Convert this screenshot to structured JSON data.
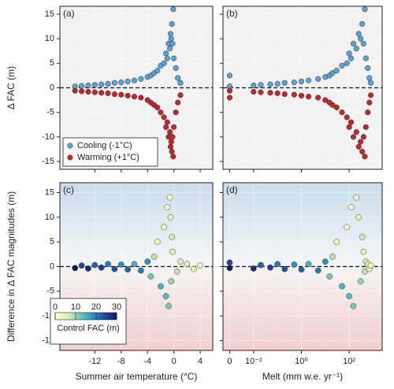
{
  "chart_data": [
    {
      "type": "scatter",
      "label": "(a)",
      "ylabel": "Δ FAC (m)",
      "x": [
        -15,
        -14,
        -13,
        -12,
        -11,
        -10,
        -9,
        -8,
        -7,
        -6,
        -5,
        -4,
        -3.5,
        -3,
        -2.5,
        -2,
        -1.5,
        -1.2,
        -1,
        -0.8,
        -0.6,
        -0.5,
        -0.4,
        -0.3,
        -0.2,
        -0.1,
        0,
        0.3,
        0.6,
        1
      ],
      "series": [
        {
          "name": "Cooling (-1°C)",
          "color": "#5ba3d6",
          "values": [
            0.3,
            0.4,
            0.5,
            0.6,
            0.7,
            0.8,
            1,
            1.1,
            1.3,
            1.5,
            1.8,
            2.2,
            2.5,
            3,
            3.5,
            4.5,
            5,
            7,
            6,
            9,
            8,
            11,
            10,
            13,
            9,
            16,
            6,
            4,
            2,
            1
          ]
        },
        {
          "name": "Warming (+1°C)",
          "color": "#c0282e",
          "values": [
            -0.6,
            -0.7,
            -0.8,
            -0.9,
            -1,
            -1.1,
            -1.3,
            -1.4,
            -1.6,
            -1.8,
            -2,
            -2.5,
            -3,
            -3.5,
            -4,
            -5,
            -6,
            -8,
            -7,
            -10,
            -9,
            -12,
            -11,
            -13,
            -10,
            -14,
            -8,
            -5,
            -3,
            -1.5
          ]
        }
      ],
      "xlim": [
        -17.3,
        5.9
      ],
      "xticks": [
        -12,
        -8,
        -4,
        0,
        4
      ],
      "show_xticklabels": false,
      "ylim": [
        -16.6,
        16.6
      ],
      "yticks": [
        -15,
        -10,
        -5,
        0,
        5,
        10,
        15
      ],
      "show_yticklabels": true,
      "grid": true,
      "hline": 0,
      "legend": "lower left"
    },
    {
      "type": "scatter",
      "label": "(b)",
      "x": [
        0,
        0,
        0.01,
        0.02,
        0.05,
        0.1,
        0.2,
        0.5,
        1,
        2,
        5,
        10,
        15,
        20,
        30,
        50,
        80,
        100,
        120,
        150,
        200,
        250,
        300,
        350,
        400,
        450,
        500,
        600,
        700,
        800
      ],
      "series": [
        {
          "name": "Cooling (-1°C)",
          "color": "#5ba3d6",
          "values": [
            0.3,
            2.5,
            0.5,
            0.6,
            0.7,
            0.8,
            1,
            1.1,
            1.3,
            1.5,
            1.8,
            2.2,
            2.5,
            3,
            3.5,
            4.5,
            5,
            7,
            6,
            9,
            8,
            11,
            10,
            13,
            9,
            16,
            6,
            4,
            2,
            1
          ]
        },
        {
          "name": "Warming (+1°C)",
          "color": "#c0282e",
          "values": [
            -0.6,
            -2,
            -0.8,
            -0.9,
            -1,
            -1.1,
            -1.3,
            -1.4,
            -1.6,
            -1.8,
            -2,
            -2.5,
            -3,
            -3.5,
            -4,
            -5,
            -6,
            -8,
            -7,
            -10,
            -9,
            -12,
            -11,
            -13,
            -10,
            -14,
            -8,
            -5,
            -3,
            -1.5
          ]
        }
      ],
      "xscale": "symlog",
      "linthresh": 0.01,
      "xlim": [
        -0.0028,
        2400
      ],
      "xticks": [
        0,
        0.01,
        1,
        100
      ],
      "show_xticklabels": false,
      "ylim": [
        -16.6,
        16.6
      ],
      "yticks": [
        -15,
        -10,
        -5,
        0,
        5,
        10,
        15
      ],
      "show_yticklabels": false,
      "grid": true,
      "hline": 0
    },
    {
      "type": "colorscatter",
      "label": "(c)",
      "ylabel": "Difference in Δ FAC magnitudes (m)",
      "xlabel": "Summer air temperature (°C)",
      "x": [
        -15,
        -14,
        -13,
        -12,
        -11,
        -10,
        -9,
        -8,
        -7,
        -6,
        -5,
        -4,
        -3.5,
        -3,
        -2.5,
        -2,
        -1.5,
        -1.2,
        -1,
        -0.8,
        -0.6,
        -0.5,
        -0.4,
        -0.3,
        -0.2,
        0.5,
        1,
        2,
        3,
        4
      ],
      "values": [
        -0.3,
        0.2,
        -0.4,
        0.3,
        -0.2,
        0.5,
        -0.5,
        0.4,
        -0.6,
        0.5,
        -0.8,
        1,
        -2,
        2,
        5,
        -4,
        8,
        -6,
        12,
        -8,
        14,
        10,
        -3,
        6,
        3,
        -1,
        1,
        0.5,
        -0.5,
        0.2
      ],
      "color_values": [
        30,
        25,
        28,
        22,
        26,
        20,
        24,
        18,
        22,
        15,
        20,
        18,
        12,
        8,
        3,
        15,
        2,
        14,
        1,
        12,
        2,
        4,
        10,
        6,
        5,
        8,
        6,
        5,
        4,
        3
      ],
      "colormap": [
        "#ffffd9",
        "#edf8b1",
        "#c7e9b4",
        "#7fcdbb",
        "#41b6c4",
        "#1d91c0",
        "#225ea8",
        "#253494",
        "#081d58"
      ],
      "clim": [
        0,
        30
      ],
      "cticks": [
        0,
        10,
        20,
        30
      ],
      "colorbar_label": "Control FAC (m)",
      "xlim": [
        -17.3,
        5.9
      ],
      "xticks": [
        -12,
        -8,
        -4,
        0,
        4
      ],
      "show_xticklabels": true,
      "ylim": [
        -17,
        17
      ],
      "yticks": [
        -15,
        -10,
        -5,
        0,
        5,
        10,
        15
      ],
      "show_yticklabels": true,
      "grid": true,
      "hline": 0
    },
    {
      "type": "colorscatter",
      "label": "(d)",
      "xlabel": "Melt (mm w.e. yr⁻¹)",
      "x": [
        0,
        0,
        0.01,
        0.02,
        0.05,
        0.1,
        0.2,
        0.5,
        1,
        2,
        5,
        10,
        15,
        20,
        30,
        50,
        80,
        100,
        120,
        150,
        200,
        250,
        300,
        350,
        400,
        450,
        500,
        600,
        700,
        800
      ],
      "values": [
        -0.3,
        0.8,
        -0.4,
        0.3,
        -0.2,
        0.5,
        -0.5,
        0.4,
        -0.6,
        0.5,
        -0.8,
        1,
        -2,
        2,
        5,
        -4,
        8,
        -6,
        12,
        -8,
        14,
        10,
        -3,
        6,
        3,
        -1,
        1,
        0.5,
        -0.5,
        0.2
      ],
      "color_values": [
        30,
        25,
        28,
        22,
        26,
        20,
        24,
        18,
        22,
        15,
        20,
        18,
        12,
        8,
        3,
        15,
        2,
        14,
        1,
        12,
        2,
        4,
        10,
        6,
        5,
        8,
        6,
        5,
        4,
        3
      ],
      "colormap": [
        "#ffffd9",
        "#edf8b1",
        "#c7e9b4",
        "#7fcdbb",
        "#41b6c4",
        "#1d91c0",
        "#225ea8",
        "#253494",
        "#081d58"
      ],
      "clim": [
        0,
        30
      ],
      "xscale": "symlog",
      "linthresh": 0.01,
      "xlim": [
        -0.0028,
        2400
      ],
      "xticks": [
        0,
        {
          "value": 0.01,
          "label": "10⁻²"
        },
        {
          "value": 1,
          "label": "10⁰"
        },
        {
          "value": 100,
          "label": "10²"
        }
      ],
      "show_xticklabels": true,
      "ylim": [
        -17,
        17
      ],
      "yticks": [
        -15,
        -10,
        -5,
        0,
        5,
        10,
        15
      ],
      "show_yticklabels": false,
      "grid": true,
      "hline": 0
    }
  ]
}
